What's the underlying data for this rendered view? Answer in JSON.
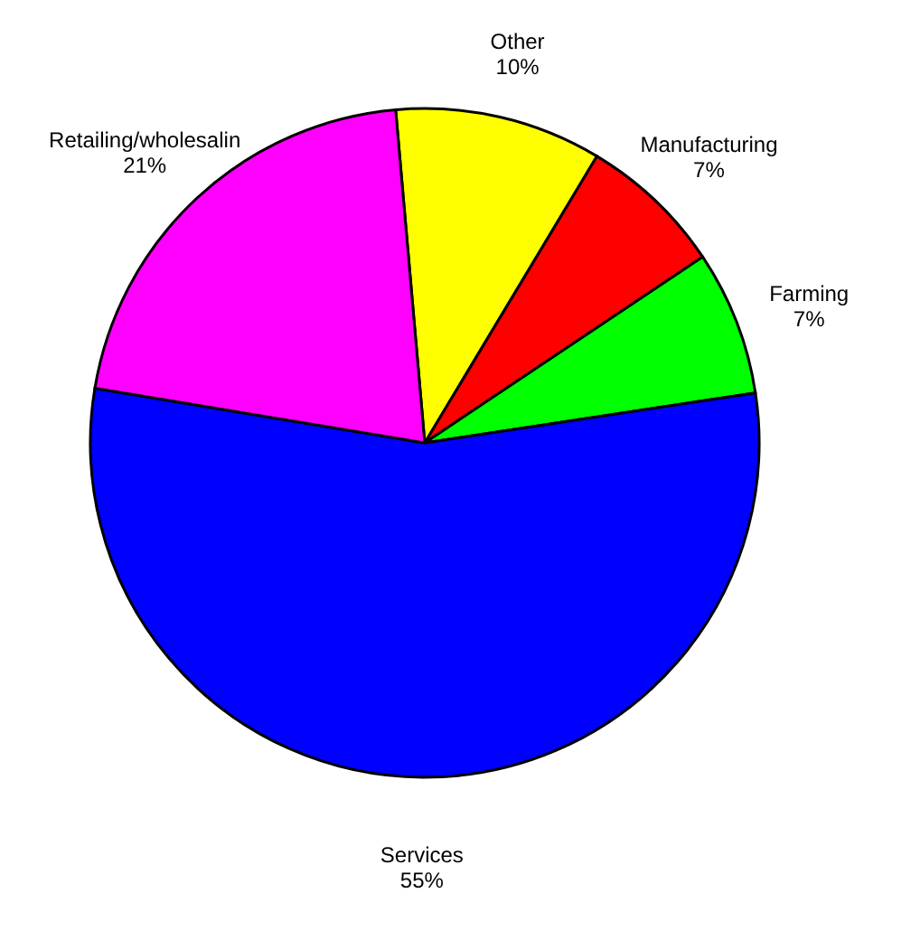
{
  "chart_data": {
    "type": "pie",
    "categories": [
      "Other",
      "Manufacturing",
      "Farming",
      "Services",
      "Retailing/wholesalin"
    ],
    "values": [
      10,
      7,
      7,
      55,
      21
    ],
    "value_labels": [
      "10%",
      "7%",
      "7%",
      "55%",
      "21%"
    ],
    "colors": [
      "#ffff00",
      "#ff0000",
      "#00ff00",
      "#0000ff",
      "#ff00ff"
    ],
    "legend": false
  }
}
